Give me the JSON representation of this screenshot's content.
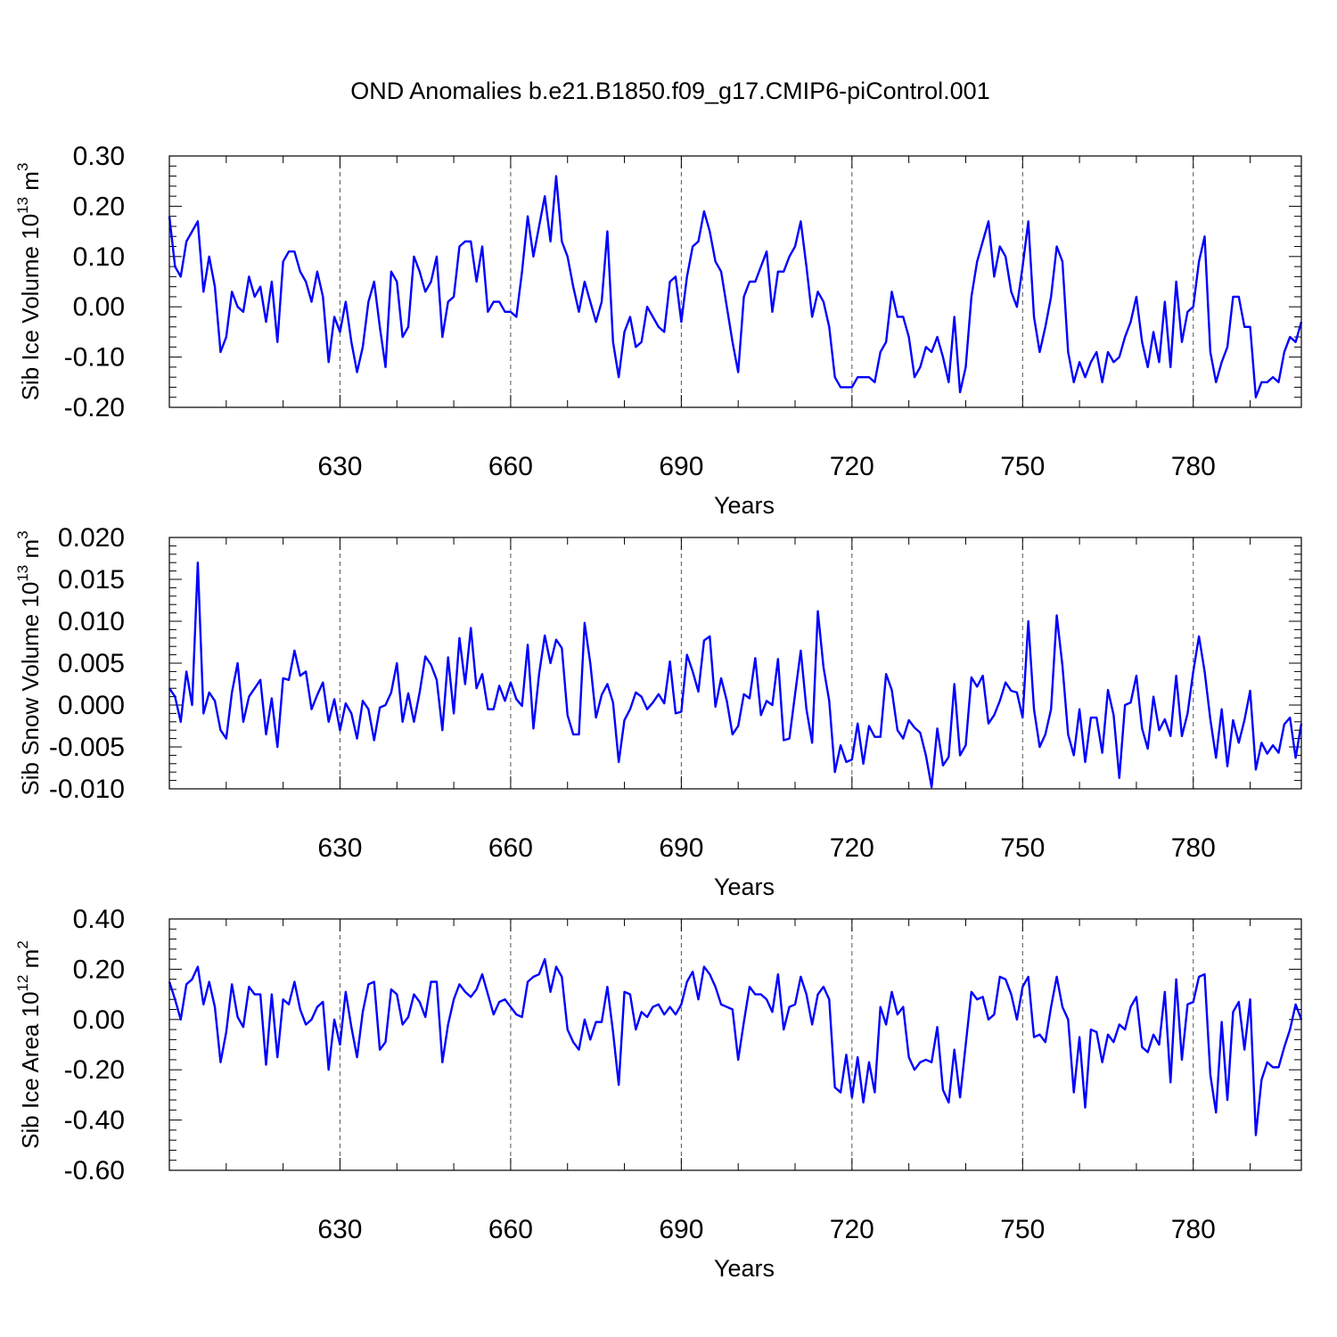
{
  "chart_data": [
    {
      "type": "line",
      "title": "OND Anomalies b.e21.B1850.f09_g17.CMIP6-piControl.001",
      "ylabel": {
        "base": "Sib Ice Volume 10",
        "exp": "13",
        "unit": " m",
        "unit_exp": "3"
      },
      "xlabel": "Years",
      "xlim": [
        600,
        799
      ],
      "ylim": [
        -0.2,
        0.3
      ],
      "x_ticks": [
        630,
        660,
        690,
        720,
        750,
        780
      ],
      "x_tick_labels": [
        "630",
        "660",
        "690",
        "720",
        "750",
        "780"
      ],
      "y_ticks": [
        0.3,
        0.2,
        0.1,
        0.0,
        -0.1,
        -0.2
      ],
      "y_tick_labels": [
        "0.30",
        "0.20",
        "0.10",
        "0.00",
        "-0.10",
        "-0.20"
      ],
      "grid": "vertical dashed at major x ticks",
      "x_start": 600,
      "series": [
        {
          "name": "Sib Ice Volume",
          "color": "#0000ff",
          "values": [
            0.18,
            0.08,
            0.06,
            0.13,
            0.15,
            0.17,
            0.03,
            0.1,
            0.04,
            -0.09,
            -0.06,
            0.03,
            0.0,
            -0.01,
            0.06,
            0.02,
            0.04,
            -0.03,
            0.05,
            -0.07,
            0.09,
            0.11,
            0.11,
            0.07,
            0.05,
            0.01,
            0.07,
            0.02,
            -0.11,
            -0.02,
            -0.05,
            0.01,
            -0.07,
            -0.13,
            -0.08,
            0.01,
            0.05,
            -0.04,
            -0.12,
            0.07,
            0.05,
            -0.06,
            -0.04,
            0.1,
            0.07,
            0.03,
            0.05,
            0.1,
            -0.06,
            0.01,
            0.02,
            0.12,
            0.13,
            0.13,
            0.05,
            0.12,
            -0.01,
            0.01,
            0.01,
            -0.01,
            -0.01,
            -0.02,
            0.07,
            0.18,
            0.1,
            0.16,
            0.22,
            0.13,
            0.26,
            0.13,
            0.1,
            0.04,
            -0.01,
            0.05,
            0.01,
            -0.03,
            0.01,
            0.15,
            -0.07,
            -0.14,
            -0.05,
            -0.02,
            -0.08,
            -0.07,
            0.0,
            -0.02,
            -0.04,
            -0.05,
            0.05,
            0.06,
            -0.03,
            0.06,
            0.12,
            0.13,
            0.19,
            0.15,
            0.09,
            0.07,
            0.0,
            -0.07,
            -0.13,
            0.02,
            0.05,
            0.05,
            0.08,
            0.11,
            -0.01,
            0.07,
            0.07,
            0.1,
            0.12,
            0.17,
            0.08,
            -0.02,
            0.03,
            0.01,
            -0.04,
            -0.14,
            -0.16,
            -0.16,
            -0.16,
            -0.14,
            -0.14,
            -0.14,
            -0.15,
            -0.09,
            -0.07,
            0.03,
            -0.02,
            -0.02,
            -0.06,
            -0.14,
            -0.12,
            -0.08,
            -0.09,
            -0.06,
            -0.1,
            -0.15,
            -0.02,
            -0.17,
            -0.12,
            0.02,
            0.09,
            0.13,
            0.17,
            0.06,
            0.12,
            0.1,
            0.03,
            0.0,
            0.08,
            0.17,
            -0.02,
            -0.09,
            -0.04,
            0.02,
            0.12,
            0.09,
            -0.09,
            -0.15,
            -0.11,
            -0.14,
            -0.11,
            -0.09,
            -0.15,
            -0.09,
            -0.11,
            -0.1,
            -0.06,
            -0.03,
            0.02,
            -0.07,
            -0.12,
            -0.05,
            -0.11,
            0.01,
            -0.12,
            0.05,
            -0.07,
            -0.01,
            0.0,
            0.09,
            0.14,
            -0.09,
            -0.15,
            -0.11,
            -0.08,
            0.02,
            0.02,
            -0.04,
            -0.04,
            -0.18,
            -0.15,
            -0.15,
            -0.14,
            -0.15,
            -0.09,
            -0.06,
            -0.07,
            -0.03
          ]
        }
      ]
    },
    {
      "type": "line",
      "ylabel": {
        "base": "Sib Snow Volume 10",
        "exp": "13",
        "unit": " m",
        "unit_exp": "3"
      },
      "xlabel": "Years",
      "xlim": [
        600,
        799
      ],
      "ylim": [
        -0.01,
        0.02
      ],
      "x_ticks": [
        630,
        660,
        690,
        720,
        750,
        780
      ],
      "x_tick_labels": [
        "630",
        "660",
        "690",
        "720",
        "750",
        "780"
      ],
      "y_ticks": [
        0.02,
        0.015,
        0.01,
        0.005,
        0.0,
        -0.005,
        -0.01
      ],
      "y_tick_labels": [
        "0.020",
        "0.015",
        "0.010",
        "0.005",
        "0.000",
        "-0.005",
        "-0.010"
      ],
      "grid": "vertical dashed at major x ticks",
      "x_start": 600,
      "series": [
        {
          "name": "Sib Snow Volume",
          "color": "#0000ff",
          "values": [
            0.002,
            0.001,
            -0.002,
            0.004,
            0.0,
            0.017,
            -0.001,
            0.0015,
            0.0005,
            -0.003,
            -0.004,
            0.0015,
            0.005,
            -0.002,
            0.001,
            0.002,
            0.003,
            -0.0035,
            0.0008,
            -0.005,
            0.0032,
            0.003,
            0.0065,
            0.0035,
            0.004,
            -0.0005,
            0.0012,
            0.0027,
            -0.002,
            0.0007,
            -0.003,
            0.0002,
            -0.001,
            -0.004,
            0.0005,
            -0.0005,
            -0.0042,
            -0.0003,
            0.0,
            0.0015,
            0.005,
            -0.002,
            0.0014,
            -0.002,
            0.0015,
            0.0058,
            0.0048,
            0.003,
            -0.003,
            0.0057,
            -0.001,
            0.008,
            0.0025,
            0.0092,
            0.002,
            0.0037,
            -0.0005,
            -0.0005,
            0.0023,
            0.0005,
            0.0027,
            0.0007,
            -0.0001,
            0.0072,
            -0.0028,
            0.0037,
            0.0083,
            0.005,
            0.0078,
            0.0068,
            -0.0012,
            -0.0035,
            -0.0035,
            0.0098,
            0.005,
            -0.0015,
            0.0012,
            0.0025,
            0.0003,
            -0.0068,
            -0.0018,
            -0.0005,
            0.0015,
            0.001,
            -0.0005,
            0.0003,
            0.0013,
            0.0002,
            0.0052,
            -0.001,
            -0.0008,
            0.006,
            0.004,
            0.0016,
            0.0077,
            0.0082,
            -0.0002,
            0.0032,
            0.0005,
            -0.0035,
            -0.0025,
            0.0013,
            0.0008,
            0.0056,
            -0.0012,
            0.0005,
            0.0,
            0.0055,
            -0.0042,
            -0.004,
            0.0013,
            0.0065,
            -0.0005,
            -0.0045,
            0.0112,
            0.0045,
            0.0005,
            -0.008,
            -0.0048,
            -0.0068,
            -0.0065,
            -0.0022,
            -0.007,
            -0.0025,
            -0.0038,
            -0.0038,
            0.0037,
            0.0018,
            -0.003,
            -0.004,
            -0.0018,
            -0.0027,
            -0.0033,
            -0.006,
            -0.0098,
            -0.0028,
            -0.0072,
            -0.0062,
            0.0025,
            -0.006,
            -0.0048,
            0.0033,
            0.0022,
            0.0035,
            -0.0022,
            -0.0012,
            0.0005,
            0.0027,
            0.0017,
            0.0015,
            -0.0015,
            0.01,
            -0.0005,
            -0.005,
            -0.0035,
            -0.0005,
            0.0107,
            0.0047,
            -0.0035,
            -0.006,
            -0.0005,
            -0.0068,
            -0.0015,
            -0.0015,
            -0.0057,
            0.0018,
            -0.0012,
            -0.0087,
            0.0,
            0.0003,
            0.0035,
            -0.0028,
            -0.0052,
            0.001,
            -0.003,
            -0.0017,
            -0.0037,
            0.0035,
            -0.0037,
            -0.001,
            0.004,
            0.0082,
            0.004,
            -0.0017,
            -0.0063,
            -0.0005,
            -0.0073,
            -0.0018,
            -0.0045,
            -0.0018,
            0.0017,
            -0.0077,
            -0.0045,
            -0.0058,
            -0.0048,
            -0.0057,
            -0.0023,
            -0.0015,
            -0.0063,
            -0.0022
          ]
        }
      ]
    },
    {
      "type": "line",
      "ylabel": {
        "base": "Sib Ice Area 10",
        "exp": "12",
        "unit": " m",
        "unit_exp": "2"
      },
      "xlabel": "Years",
      "xlim": [
        600,
        799
      ],
      "ylim": [
        -0.6,
        0.4
      ],
      "x_ticks": [
        630,
        660,
        690,
        720,
        750,
        780
      ],
      "x_tick_labels": [
        "630",
        "660",
        "690",
        "720",
        "750",
        "780"
      ],
      "y_ticks": [
        0.4,
        0.2,
        0.0,
        -0.2,
        -0.4,
        -0.6
      ],
      "y_tick_labels": [
        "0.40",
        "0.20",
        "0.00",
        "-0.20",
        "-0.40",
        "-0.60"
      ],
      "grid": "vertical dashed at major x ticks",
      "x_start": 600,
      "series": [
        {
          "name": "Sib Ice Area",
          "color": "#0000ff",
          "values": [
            0.15,
            0.08,
            0.0,
            0.14,
            0.16,
            0.21,
            0.06,
            0.15,
            0.05,
            -0.17,
            -0.05,
            0.14,
            0.01,
            -0.03,
            0.13,
            0.1,
            0.1,
            -0.18,
            0.1,
            -0.15,
            0.08,
            0.06,
            0.15,
            0.04,
            -0.02,
            0.0,
            0.05,
            0.07,
            -0.2,
            0.0,
            -0.1,
            0.11,
            -0.03,
            -0.15,
            0.03,
            0.14,
            0.15,
            -0.12,
            -0.09,
            0.12,
            0.1,
            -0.02,
            0.01,
            0.1,
            0.07,
            0.01,
            0.15,
            0.15,
            -0.17,
            -0.02,
            0.08,
            0.14,
            0.11,
            0.09,
            0.12,
            0.18,
            0.1,
            0.02,
            0.07,
            0.08,
            0.05,
            0.02,
            0.01,
            0.15,
            0.17,
            0.18,
            0.24,
            0.11,
            0.21,
            0.17,
            -0.04,
            -0.09,
            -0.12,
            0.0,
            -0.08,
            -0.01,
            -0.01,
            0.13,
            -0.05,
            -0.26,
            0.11,
            0.1,
            -0.04,
            0.03,
            0.01,
            0.05,
            0.06,
            0.02,
            0.05,
            0.02,
            0.06,
            0.15,
            0.19,
            0.08,
            0.21,
            0.18,
            0.13,
            0.06,
            0.05,
            0.04,
            -0.16,
            -0.01,
            0.13,
            0.1,
            0.1,
            0.08,
            0.03,
            0.18,
            -0.04,
            0.05,
            0.06,
            0.17,
            0.1,
            -0.02,
            0.1,
            0.13,
            0.08,
            -0.27,
            -0.29,
            -0.14,
            -0.31,
            -0.15,
            -0.33,
            -0.17,
            -0.29,
            0.05,
            -0.02,
            0.11,
            0.02,
            0.05,
            -0.15,
            -0.2,
            -0.17,
            -0.16,
            -0.17,
            -0.03,
            -0.28,
            -0.33,
            -0.12,
            -0.31,
            -0.1,
            0.11,
            0.08,
            0.09,
            0.0,
            0.02,
            0.17,
            0.16,
            0.1,
            0.0,
            0.13,
            0.17,
            -0.07,
            -0.06,
            -0.09,
            0.05,
            0.17,
            0.05,
            0.0,
            -0.29,
            -0.07,
            -0.35,
            -0.04,
            -0.05,
            -0.17,
            -0.06,
            -0.09,
            -0.02,
            -0.04,
            0.05,
            0.09,
            -0.11,
            -0.13,
            -0.06,
            -0.1,
            0.11,
            -0.25,
            0.16,
            -0.16,
            0.06,
            0.07,
            0.17,
            0.18,
            -0.22,
            -0.37,
            -0.01,
            -0.32,
            0.03,
            0.07,
            -0.12,
            0.08,
            -0.46,
            -0.24,
            -0.17,
            -0.19,
            -0.19,
            -0.11,
            -0.04,
            0.06,
            0.0
          ]
        }
      ]
    }
  ]
}
